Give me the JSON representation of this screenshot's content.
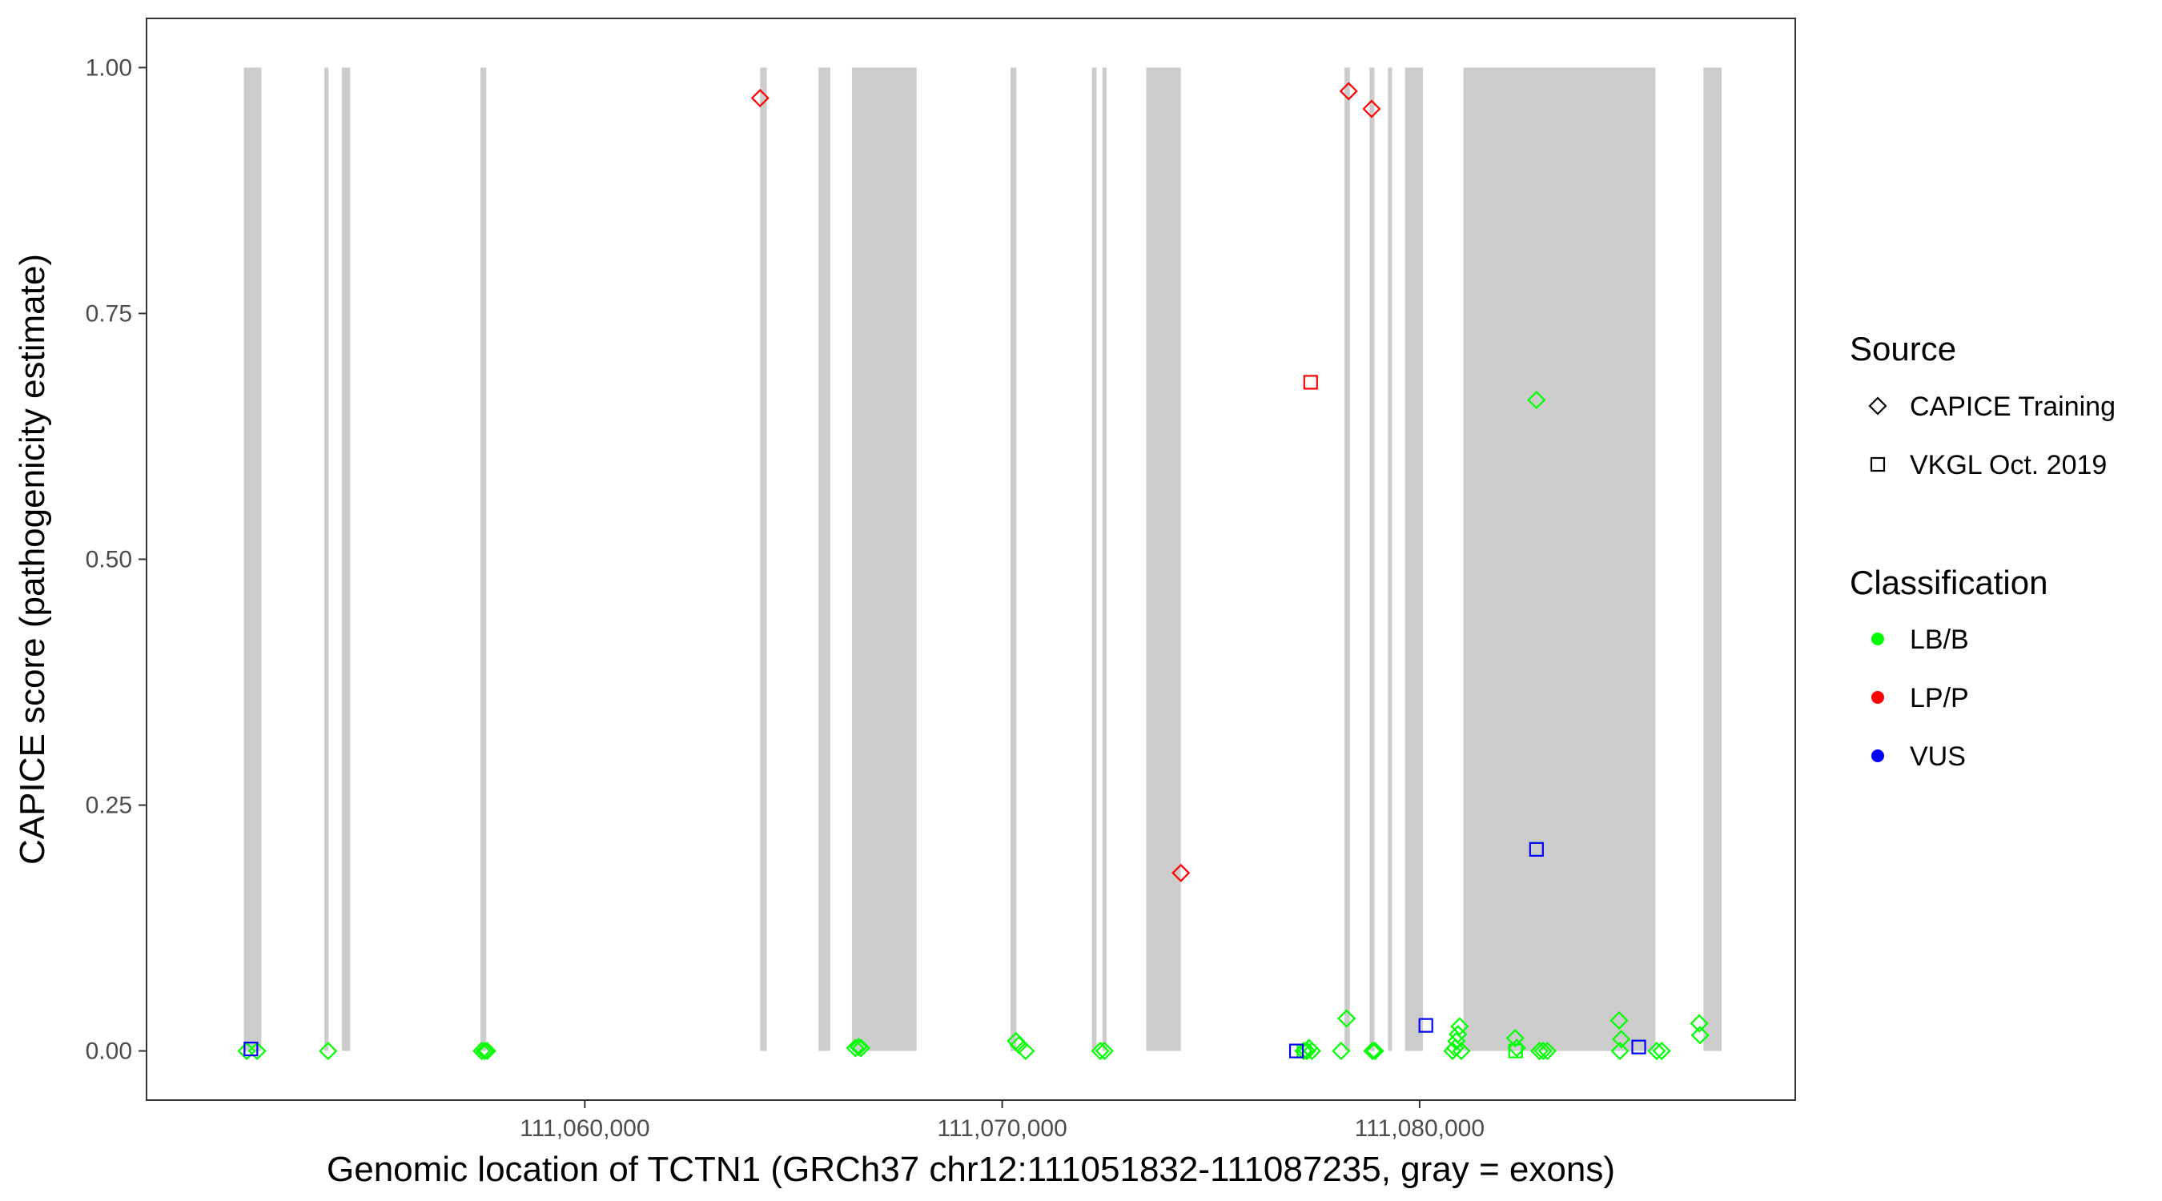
{
  "chart_data": {
    "type": "scatter",
    "title": "",
    "xlabel": "Genomic location of TCTN1 (GRCh37 chr12:111051832-111087235, gray = exons)",
    "ylabel": "CAPICE score (pathogenicity estimate)",
    "xlim": [
      111049500,
      111089000
    ],
    "ylim": [
      -0.05,
      1.05
    ],
    "x_ticks": [
      {
        "value": 111060000,
        "label": "111,060,000"
      },
      {
        "value": 111070000,
        "label": "111,070,000"
      },
      {
        "value": 111080000,
        "label": "111,080,000"
      }
    ],
    "y_ticks": [
      {
        "value": 0.0,
        "label": "0.00"
      },
      {
        "value": 0.25,
        "label": "0.25"
      },
      {
        "value": 0.5,
        "label": "0.50"
      },
      {
        "value": 0.75,
        "label": "0.75"
      },
      {
        "value": 1.0,
        "label": "1.00"
      }
    ],
    "grid": false,
    "legend_position": "right",
    "exons": [
      [
        111051832,
        111052250
      ],
      [
        111053760,
        111053860
      ],
      [
        111054180,
        111054380
      ],
      [
        111057500,
        111057640
      ],
      [
        111064200,
        111064360
      ],
      [
        111065600,
        111065880
      ],
      [
        111066400,
        111067950
      ],
      [
        111070200,
        111070340
      ],
      [
        111072150,
        111072260
      ],
      [
        111072400,
        111072500
      ],
      [
        111073450,
        111074280
      ],
      [
        111078200,
        111078330
      ],
      [
        111078800,
        111078920
      ],
      [
        111079240,
        111079340
      ],
      [
        111079650,
        111080080
      ],
      [
        111081050,
        111085650
      ],
      [
        111086800,
        111087235
      ]
    ],
    "colors": {
      "LB/B": "#00ff00",
      "LP/P": "#ff0000",
      "VUS": "#0000ff",
      "exon": "#cccccc"
    },
    "legend": {
      "source_title": "Source",
      "source_items": [
        {
          "label": "CAPICE Training",
          "shape": "diamond"
        },
        {
          "label": "VKGL Oct. 2019",
          "shape": "square"
        }
      ],
      "class_title": "Classification",
      "class_items": [
        {
          "label": "LB/B"
        },
        {
          "label": "LP/P"
        },
        {
          "label": "VUS"
        }
      ]
    },
    "series": [
      {
        "source": "CAPICE Training",
        "classification": "LB/B",
        "points": [
          [
            111051900,
            0.0
          ],
          [
            111052150,
            0.0
          ],
          [
            111053850,
            0.0
          ],
          [
            111057530,
            0.0
          ],
          [
            111057600,
            0.0
          ],
          [
            111057660,
            0.0
          ],
          [
            111066480,
            0.003
          ],
          [
            111066560,
            0.004
          ],
          [
            111066620,
            0.003
          ],
          [
            111070330,
            0.01
          ],
          [
            111070400,
            0.006
          ],
          [
            111070560,
            0.0
          ],
          [
            111072350,
            0.0
          ],
          [
            111072450,
            0.0
          ],
          [
            111077220,
            0.0
          ],
          [
            111077300,
            0.0
          ],
          [
            111077350,
            0.003
          ],
          [
            111077420,
            0.0
          ],
          [
            111078120,
            0.0
          ],
          [
            111078250,
            0.033
          ],
          [
            111078870,
            0.0
          ],
          [
            111078930,
            0.0
          ],
          [
            111080790,
            0.0
          ],
          [
            111080850,
            0.003
          ],
          [
            111080880,
            0.01
          ],
          [
            111080920,
            0.017
          ],
          [
            111080960,
            0.025
          ],
          [
            111081000,
            0.0
          ],
          [
            111082290,
            0.013
          ],
          [
            111082330,
            0.003
          ],
          [
            111082800,
            0.662
          ],
          [
            111082870,
            0.0
          ],
          [
            111082960,
            0.0
          ],
          [
            111083060,
            0.0
          ],
          [
            111084780,
            0.031
          ],
          [
            111084800,
            0.0
          ],
          [
            111084830,
            0.012
          ],
          [
            111085680,
            0.0
          ],
          [
            111085800,
            0.0
          ],
          [
            111086700,
            0.028
          ],
          [
            111086720,
            0.016
          ]
        ]
      },
      {
        "source": "CAPICE Training",
        "classification": "LP/P",
        "points": [
          [
            111064200,
            0.969
          ],
          [
            111074280,
            0.181
          ],
          [
            111078300,
            0.976
          ],
          [
            111078850,
            0.958
          ]
        ]
      },
      {
        "source": "VKGL Oct. 2019",
        "classification": "LB/B",
        "points": [
          [
            111077230,
            0.0
          ],
          [
            111082300,
            0.0
          ]
        ]
      },
      {
        "source": "VKGL Oct. 2019",
        "classification": "LP/P",
        "points": [
          [
            111077390,
            0.68
          ]
        ]
      },
      {
        "source": "VKGL Oct. 2019",
        "classification": "VUS",
        "points": [
          [
            111052000,
            0.002
          ],
          [
            111077050,
            0.0
          ],
          [
            111080150,
            0.026
          ],
          [
            111082800,
            0.205
          ],
          [
            111085250,
            0.004
          ]
        ]
      }
    ]
  }
}
